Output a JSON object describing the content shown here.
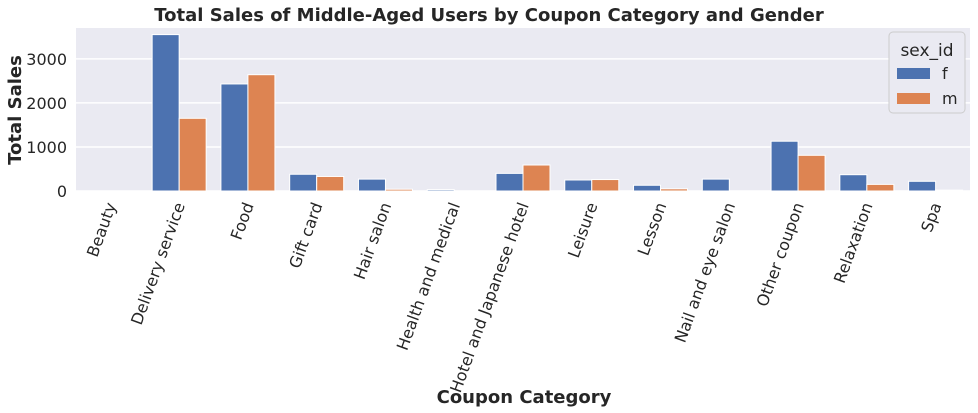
{
  "chart_data": {
    "type": "bar",
    "title": "Total Sales of Middle-Aged Users by Coupon Category and Gender",
    "xlabel": "Coupon Category",
    "ylabel": "Total Sales",
    "categories": [
      "Beauty",
      "Delivery service",
      "Food",
      "Gift card",
      "Hair salon",
      "Health and medical",
      "Hotel and Japanese hotel",
      "Leisure",
      "Lesson",
      "Nail and eye salon",
      "Other coupon",
      "Relaxation",
      "Spa"
    ],
    "series": [
      {
        "name": "f",
        "color": "#4c72b0",
        "values": [
          0,
          3550,
          2430,
          380,
          270,
          30,
          400,
          250,
          130,
          270,
          1130,
          370,
          220
        ]
      },
      {
        "name": "m",
        "color": "#dd8452",
        "values": [
          0,
          1650,
          2640,
          330,
          40,
          0,
          590,
          260,
          50,
          0,
          810,
          150,
          20
        ]
      }
    ],
    "ylim": [
      0,
      3700
    ],
    "yticks": [
      0,
      1000,
      2000,
      3000
    ],
    "grid": true,
    "legend": {
      "title": "sex_id",
      "position": "top-right"
    }
  }
}
